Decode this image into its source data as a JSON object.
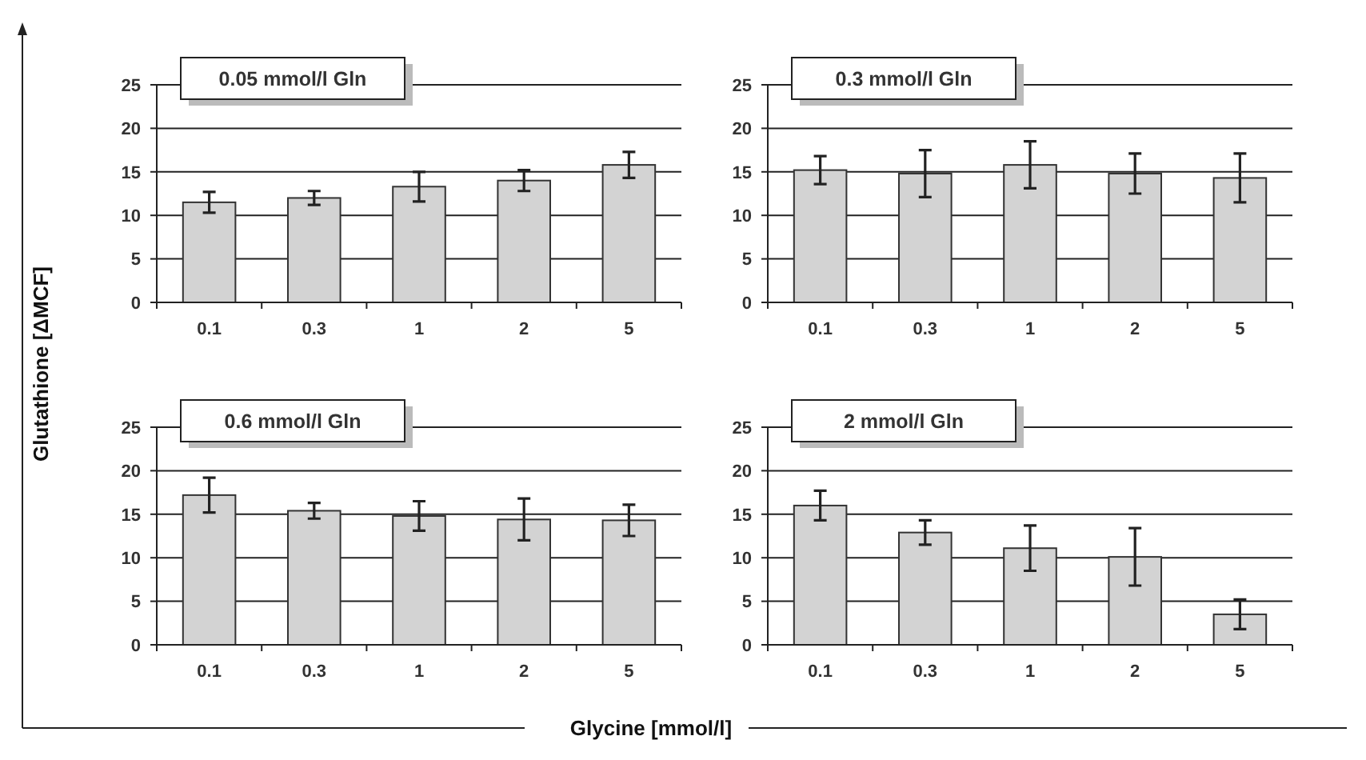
{
  "chart_data": [
    {
      "type": "bar",
      "title": "0.05 mmol/l Gln",
      "ylabel": "Glutathione [ΔMCF]",
      "categories": [
        "0.1",
        "0.3",
        "1",
        "2",
        "5"
      ],
      "values": [
        11.5,
        12,
        13.3,
        14,
        15.8
      ],
      "errors": [
        1.2,
        0.8,
        1.7,
        1.2,
        1.5
      ],
      "color": "#d3d3d3",
      "ylim": [
        0,
        25
      ],
      "yticks": [
        0,
        5,
        10,
        15,
        20,
        25
      ],
      "grid": "y"
    },
    {
      "type": "bar",
      "title": "0.3 mmol/l Gln",
      "categories": [
        "0.1",
        "0.3",
        "1",
        "2",
        "5"
      ],
      "values": [
        15.2,
        14.8,
        15.8,
        14.8,
        14.3
      ],
      "errors": [
        1.6,
        2.7,
        2.7,
        2.3,
        2.8
      ],
      "color": "#d3d3d3",
      "ylim": [
        0,
        25
      ],
      "yticks": [
        0,
        5,
        10,
        15,
        20,
        25
      ],
      "grid": "y"
    },
    {
      "type": "bar",
      "title": "0.6 mmol/l Gln",
      "categories": [
        "0.1",
        "0.3",
        "1",
        "2",
        "5"
      ],
      "values": [
        17.2,
        15.4,
        14.8,
        14.4,
        14.3
      ],
      "errors": [
        2,
        0.9,
        1.7,
        2.4,
        1.8
      ],
      "color": "#d3d3d3",
      "ylim": [
        0,
        25
      ],
      "yticks": [
        0,
        5,
        10,
        15,
        20,
        25
      ],
      "grid": "y"
    },
    {
      "type": "bar",
      "title": "2 mmol/l Gln",
      "xlabel": "Glycine [mmol/l]",
      "categories": [
        "0.1",
        "0.3",
        "1",
        "2",
        "5"
      ],
      "values": [
        16,
        12.9,
        11.1,
        10.1,
        3.5
      ],
      "errors": [
        1.7,
        1.4,
        2.6,
        3.3,
        1.7
      ],
      "color": "#d3d3d3",
      "ylim": [
        0,
        25
      ],
      "yticks": [
        0,
        5,
        10,
        15,
        20,
        25
      ],
      "grid": "y"
    }
  ]
}
